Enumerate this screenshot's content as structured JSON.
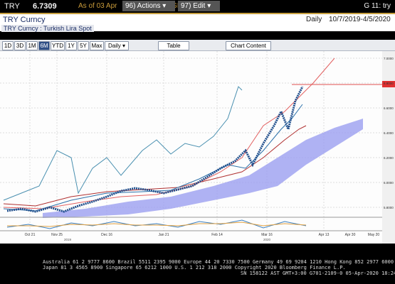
{
  "top_bar": {
    "ticker": "TRY",
    "price": "6.7309",
    "as_of": "As of 03 Apr",
    "source": "Source BGN",
    "actions": "96) Actions ▾",
    "edit": "97) Edit ▾",
    "page": "G 11: try"
  },
  "header": {
    "security": "TRY Curncy",
    "frequency": "Daily",
    "range": "10/7/2019-4/5/2020",
    "description": "TRY Curncy : Turkish Lira Spot"
  },
  "toolbar": {
    "buttons": [
      "1D",
      "3D",
      "1M",
      "6M",
      "YTD",
      "1Y",
      "5Y",
      "Max",
      "Daily ▾",
      "Table",
      "Chart Content"
    ],
    "selected": "6M"
  },
  "price_axis": [
    "7.0000",
    "6.8000",
    "6.6000",
    "6.4000",
    "6.2000",
    "6.0000",
    "5.8000"
  ],
  "x_axis": {
    "labels": [
      "Oct 21",
      "Nov 25",
      "Dec 16",
      "Jan 21",
      "Feb 14",
      "Mar 16",
      "Apr 13",
      "Apr 30",
      "May 20"
    ],
    "years": [
      "2019",
      "2020"
    ]
  },
  "footer": [
    "Australia 61 2 9777 8600 Brazil 5511 2395 9000 Europe 44 20 7330 7500 Germany 49 69 9204 1210 Hong Kong 852 2977 6000",
    "Japan 81 3 4565 8900 Singapore 65 6212 1000 U.S. 1 212 318 2000 Copyright 2020 Bloomberg Finance L.P.",
    "SN 158122 AST GMT+3:00 G701-2109-0 05-Apr-2020 18:24:47"
  ]
}
